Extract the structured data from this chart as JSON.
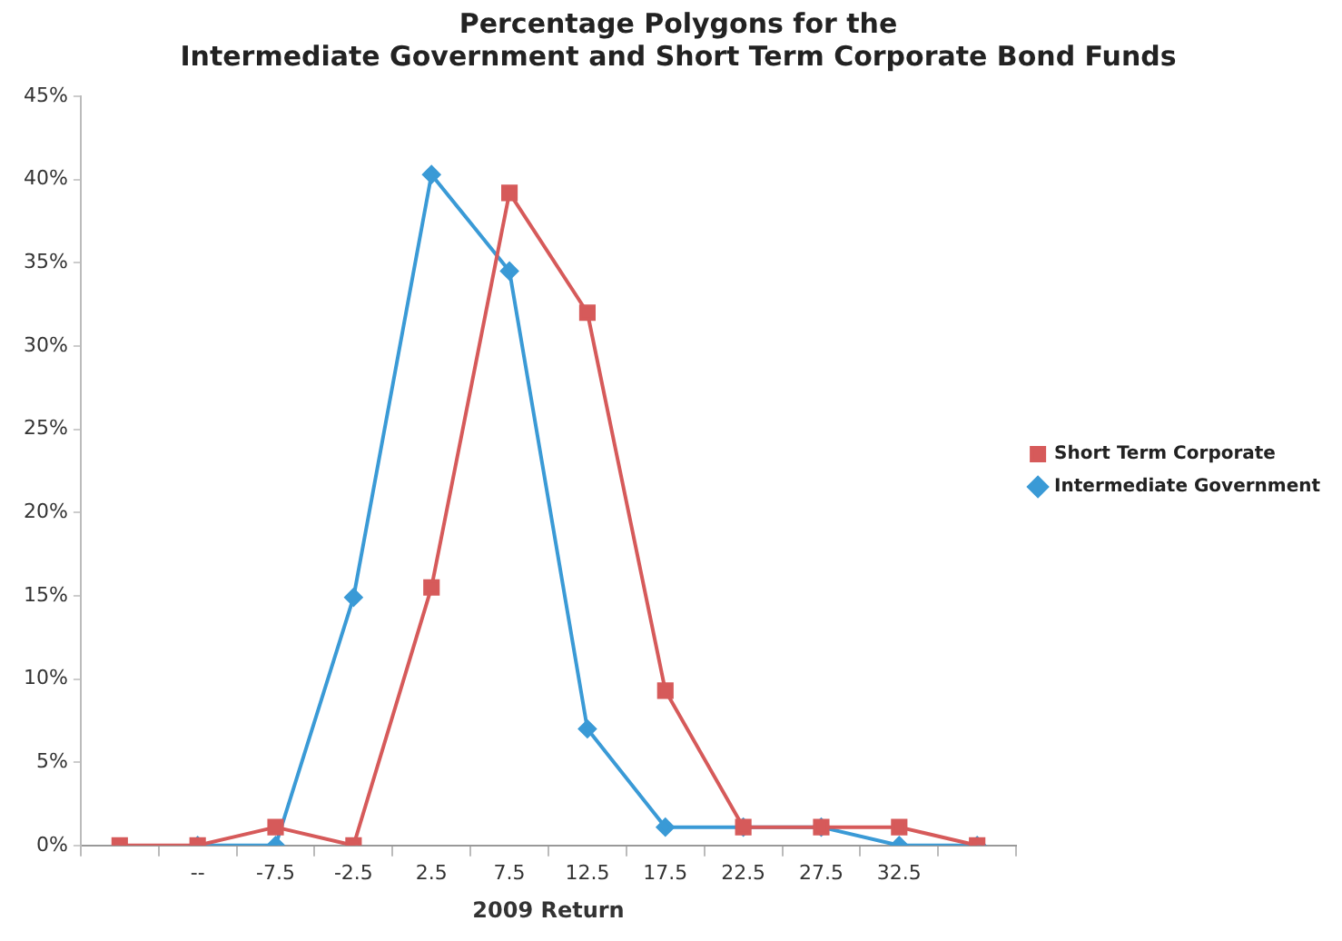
{
  "chart_data": {
    "type": "line",
    "title": "Percentage Polygons for the\nIntermediate Government and Short Term Corporate Bond Funds",
    "xlabel": "2009 Return",
    "categories": [
      null,
      "--",
      "-7.5",
      "-2.5",
      "2.5",
      "7.5",
      "12.5",
      "17.5",
      "22.5",
      "27.5",
      "32.5",
      null
    ],
    "series": [
      {
        "name": "Intermediate Government",
        "color": "#3a9ad6",
        "marker": "diamond",
        "values": [
          null,
          0,
          0,
          14.9,
          40.3,
          34.5,
          7,
          1.1,
          1.1,
          1.1,
          0,
          0
        ]
      },
      {
        "name": "Short Term Corporate",
        "color": "#d65a5a",
        "marker": "square",
        "values": [
          0,
          0,
          1.1,
          0,
          15.5,
          39.2,
          32,
          9.3,
          1.1,
          1.1,
          1.1,
          0
        ]
      }
    ],
    "ylim": [
      0,
      45
    ],
    "yticks": [
      {
        "value": 0,
        "label": "0%"
      },
      {
        "value": 5,
        "label": "5%"
      },
      {
        "value": 10,
        "label": "10%"
      },
      {
        "value": 15,
        "label": "15%"
      },
      {
        "value": 20,
        "label": "20%"
      },
      {
        "value": 25,
        "label": "25%"
      },
      {
        "value": 30,
        "label": "30%"
      },
      {
        "value": 35,
        "label": "35%"
      },
      {
        "value": 40,
        "label": "40%"
      },
      {
        "value": 45,
        "label": "45%"
      }
    ],
    "grid": false,
    "legend": "right"
  }
}
